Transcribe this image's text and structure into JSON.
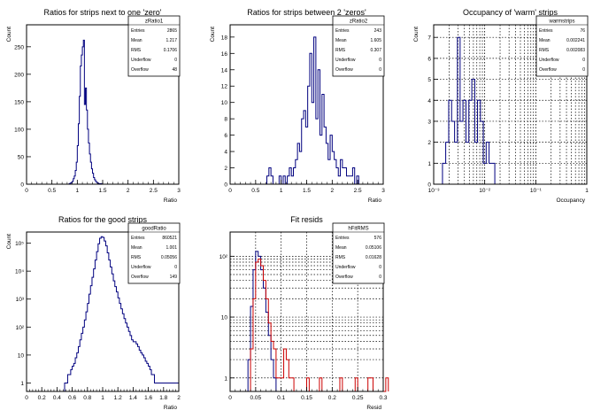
{
  "chart_data": [
    {
      "type": "histogram",
      "title": "Ratios for strips next to one 'zero'",
      "xlabel": "Ratio",
      "ylabel": "Count",
      "xlim": [
        0,
        3
      ],
      "ylim": [
        0,
        290
      ],
      "log_y": false,
      "x_ticks": [
        0,
        0.5,
        1,
        1.5,
        2,
        2.5,
        3
      ],
      "y_ticks": [
        0,
        50,
        100,
        150,
        200,
        250
      ],
      "grid": false,
      "stats": {
        "name": "zRatio1",
        "Entries": "2865",
        "Mean": "1.217",
        "RMS": "0.1706",
        "Underflow": "0",
        "Overflow": "48"
      },
      "bin_width": 0.02,
      "series": [
        {
          "color": "#00007f",
          "x_start": 0.84,
          "values": [
            1,
            2,
            3,
            5,
            10,
            15,
            25,
            40,
            70,
            110,
            160,
            215,
            235,
            250,
            262,
            145,
            175,
            135,
            100,
            75,
            55,
            40,
            28,
            20,
            12,
            8,
            5,
            3,
            2,
            1,
            1,
            1
          ]
        }
      ]
    },
    {
      "type": "histogram",
      "title": "Ratios for strips between 2 'zeros'",
      "xlabel": "Ratio",
      "ylabel": "Count",
      "xlim": [
        0,
        3
      ],
      "ylim": [
        0,
        19.5
      ],
      "log_y": false,
      "x_ticks": [
        0,
        0.5,
        1,
        1.5,
        2,
        2.5,
        3
      ],
      "y_ticks": [
        0,
        2,
        4,
        6,
        8,
        10,
        12,
        14,
        16,
        18
      ],
      "grid": false,
      "stats": {
        "name": "zRatio2",
        "Entries": "243",
        "Mean": "1.605",
        "RMS": "0.307",
        "Underflow": "0",
        "Overflow": "0"
      },
      "bin_width": 0.04,
      "series": [
        {
          "color": "#00007f",
          "x_start": 0.72,
          "values": [
            1,
            2,
            1,
            0,
            0,
            0,
            1,
            0,
            1,
            0,
            1,
            2,
            1,
            2,
            3,
            5,
            4,
            8,
            9,
            7,
            12,
            16,
            10,
            18,
            8,
            14,
            6,
            11,
            7,
            5,
            3,
            6,
            4,
            3,
            2,
            1,
            3,
            2,
            2,
            1,
            1,
            1,
            2,
            0,
            1
          ]
        }
      ]
    },
    {
      "type": "histogram",
      "title": "Occupancy of 'warm' strips",
      "xlabel": "Occupancy",
      "ylabel": "Count",
      "xlim": [
        0.001,
        1
      ],
      "ylim": [
        0,
        7.6
      ],
      "log_x": true,
      "log_y": false,
      "x_ticks": [
        {
          "v": 0.001,
          "t": "10⁻³"
        },
        {
          "v": 0.01,
          "t": "10⁻²"
        },
        {
          "v": 0.1,
          "t": "10⁻¹"
        },
        {
          "v": 1,
          "t": "1"
        }
      ],
      "y_ticks": [
        0,
        1,
        2,
        3,
        4,
        5,
        6,
        7
      ],
      "grid": true,
      "stats": {
        "name": "warmstrips",
        "Entries": "76",
        "Mean": "0.002241",
        "RMS": "0.002083",
        "Underflow": "0",
        "Overflow": "0"
      },
      "series": [
        {
          "color": "#00007f",
          "x": [
            0.0016,
            0.00185,
            0.0021,
            0.0024,
            0.00275,
            0.0031,
            0.0035,
            0.004,
            0.0046,
            0.0052,
            0.006,
            0.0068,
            0.0077,
            0.0088,
            0.01,
            0.0114,
            0.013,
            0.0148,
            0.0168
          ],
          "values": [
            1,
            2,
            4,
            3,
            2,
            7,
            3,
            4,
            2,
            4,
            5,
            2,
            4,
            3,
            1,
            2,
            1,
            1,
            0
          ]
        }
      ]
    },
    {
      "type": "histogram",
      "title": "Ratios for the good strips",
      "xlabel": "Ratio",
      "ylabel": "Count",
      "xlim": [
        0,
        2
      ],
      "ylim": [
        0.5,
        250000
      ],
      "log_y": true,
      "x_ticks": [
        0,
        0.2,
        0.4,
        0.6,
        0.8,
        1,
        1.2,
        1.4,
        1.6,
        1.8,
        2
      ],
      "y_ticks": [
        {
          "v": 1,
          "t": "1"
        },
        {
          "v": 10,
          "t": "10"
        },
        {
          "v": 100,
          "t": "10²"
        },
        {
          "v": 1000,
          "t": "10³"
        },
        {
          "v": 10000,
          "t": "10⁴"
        },
        {
          "v": 100000,
          "t": "10⁵"
        }
      ],
      "grid": false,
      "stats": {
        "name": "goodRatio",
        "Entries": "860521",
        "Mean": "1.001",
        "RMS": "0.05056",
        "Underflow": "0",
        "Overflow": "149"
      },
      "bin_width": 0.02,
      "series": [
        {
          "color": "#00007f",
          "x_start": 0.5,
          "values": [
            1,
            1,
            2,
            2,
            3,
            4,
            5,
            8,
            12,
            20,
            35,
            60,
            100,
            180,
            350,
            700,
            1500,
            3000,
            6000,
            12000,
            25000,
            50000,
            95000,
            150000,
            170000,
            160000,
            120000,
            80000,
            45000,
            25000,
            14000,
            8000,
            4500,
            2800,
            1800,
            1100,
            700,
            450,
            300,
            200,
            140,
            100,
            70,
            50,
            35,
            30,
            30,
            25,
            20,
            15,
            12,
            10,
            8,
            6,
            5,
            4,
            3,
            2,
            2,
            1,
            1,
            1,
            1,
            1,
            1,
            1,
            1,
            1,
            1,
            1,
            1,
            1,
            1,
            1,
            1
          ]
        }
      ]
    },
    {
      "type": "histogram",
      "title": "Fit resids",
      "xlabel": "Resid",
      "ylabel": "",
      "xlim": [
        0,
        0.3
      ],
      "ylim": [
        0.6,
        250
      ],
      "log_y": true,
      "x_ticks": [
        0,
        0.05,
        0.1,
        0.15,
        0.2,
        0.25,
        0.3
      ],
      "y_ticks": [
        {
          "v": 1,
          "t": "1"
        },
        {
          "v": 10,
          "t": "10"
        },
        {
          "v": 100,
          "t": "10²"
        }
      ],
      "grid": true,
      "stats": {
        "name": "hFitRMS",
        "Entries": "576",
        "Mean": "0.05106",
        "RMS": "0.01628",
        "Underflow": "0",
        "Overflow": "0"
      },
      "bin_width": 0.005,
      "series": [
        {
          "name": "blue",
          "color": "#00007f",
          "x_start": 0.035,
          "values": [
            2,
            15,
            60,
            120,
            100,
            60,
            30,
            12,
            5,
            2,
            1
          ]
        },
        {
          "name": "red",
          "color": "#cc0000",
          "x_start": 0.04,
          "values": [
            3,
            20,
            80,
            90,
            70,
            40,
            20,
            8,
            4,
            3,
            1,
            1,
            1,
            3,
            2,
            1,
            1,
            0,
            0,
            0,
            0,
            0,
            1,
            0,
            0,
            0,
            0,
            1,
            0,
            0,
            0,
            0,
            0,
            0,
            0,
            1,
            0,
            0,
            0,
            0,
            0,
            1,
            0,
            0,
            0,
            0,
            1,
            1,
            0,
            0,
            0,
            0,
            0,
            1
          ]
        }
      ]
    }
  ]
}
